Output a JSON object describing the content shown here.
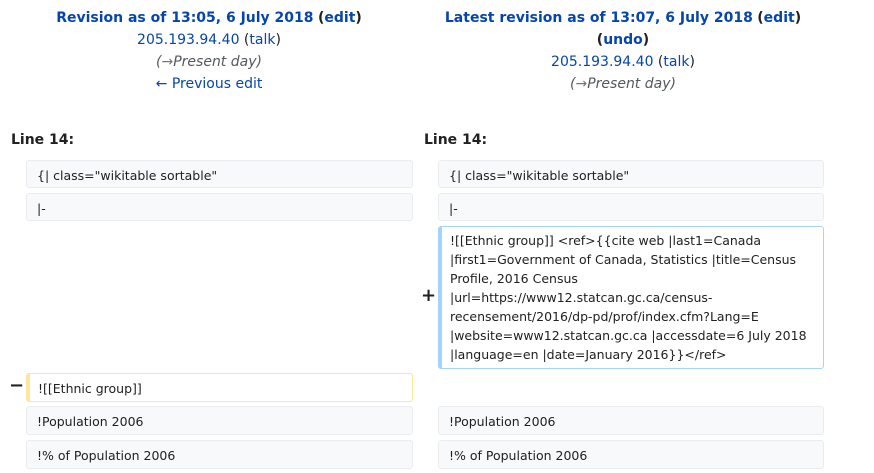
{
  "left_header": {
    "revision_label": "Revision as of 13:05, 6 July 2018",
    "edit_link": "edit",
    "user": "205.193.94.40",
    "talk": "talk",
    "arrow": "→",
    "section": "Present day",
    "prev": "← Previous edit"
  },
  "right_header": {
    "revision_label": "Latest revision as of 13:07, 6 July 2018",
    "edit_link": "edit",
    "undo": "undo",
    "user": "205.193.94.40",
    "talk": "talk",
    "arrow": "→",
    "section": "Present day"
  },
  "line_left": "Line 14:",
  "line_right": "Line 14:",
  "rows": {
    "r1_left": "{| class=\"wikitable sortable\"",
    "r1_right": "{| class=\"wikitable sortable\"",
    "r2_left": "|-",
    "r2_right": "|-",
    "added": "![[Ethnic group]] <ref>{{cite web |last1=Canada |first1=Government of Canada, Statistics |title=Census Profile, 2016 Census |url=https://www12.statcan.gc.ca/census-recensement/2016/dp-pd/prof/index.cfm?Lang=E |website=www12.statcan.gc.ca |accessdate=6 July 2018 |language=en |date=January 2016}}</ref>",
    "deleted": "![[Ethnic group]]",
    "r4_left": "!Population 2006",
    "r4_right": "!Population 2006",
    "r5_left": "!% of Population 2006",
    "r5_right": "!% of Population 2006"
  },
  "markers": {
    "plus": "+",
    "minus": "−"
  }
}
